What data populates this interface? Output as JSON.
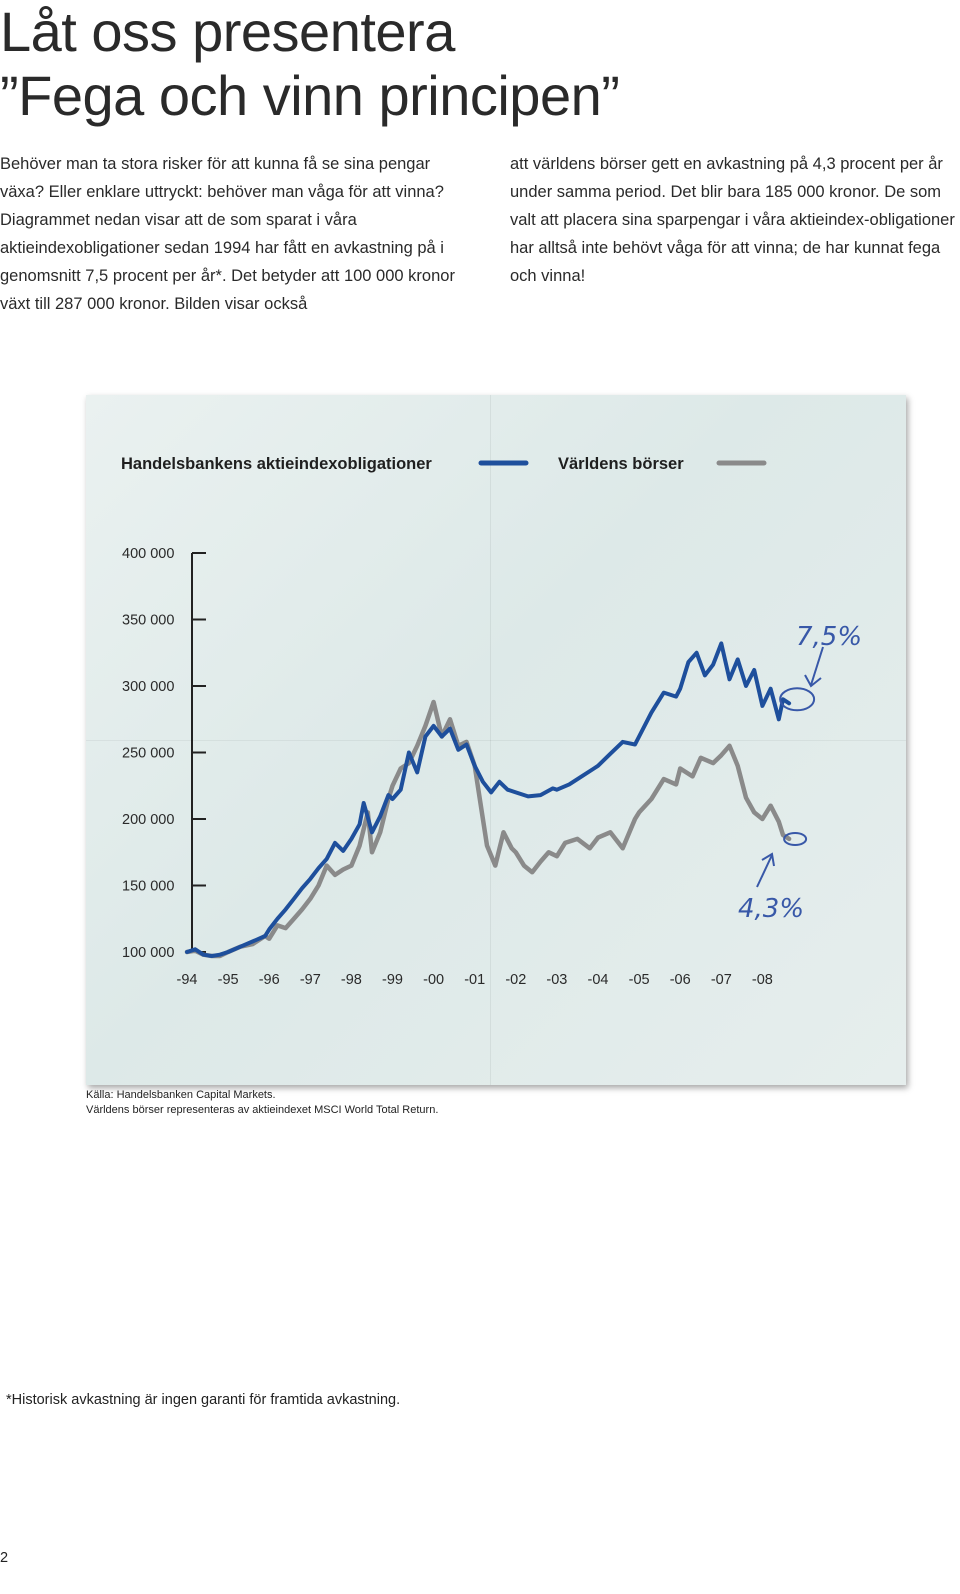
{
  "heading": {
    "line1": "Låt oss presentera",
    "line2": "”Fega och vinn principen”"
  },
  "body": {
    "left": "Behöver man ta stora risker för att kunna få se sina pengar växa? Eller enklare uttryckt: behöver man våga för att vinna? Diagrammet nedan visar att de som sparat i våra aktieindexobligationer sedan 1994 har fått en avkastning på i genomsnitt 7,5 procent per år*. Det betyder att 100 000 kronor växt till 287 000 kronor. Bilden visar också",
    "right": "att världens börser gett en avkastning på 4,3 procent per år under samma period. Det blir bara 185 000 kronor. De som valt att placera sina sparpengar i våra aktieindex-obligationer har alltså inte behövt våga för att vinna; de har kunnat fega och vinna!"
  },
  "chart_data": {
    "type": "line",
    "colors": {
      "handelsbanken": "#1e4f9c",
      "world": "#8a8a8a",
      "annotation": "#3858a8"
    },
    "legend_placement": "top",
    "grid": false,
    "ylim": [
      100000,
      400000
    ],
    "y_ticks": [
      "400 000",
      "350 000",
      "300 000",
      "250 000",
      "200 000",
      "150 000",
      "100 000"
    ],
    "y_tick_values": [
      400000,
      350000,
      300000,
      250000,
      200000,
      150000,
      100000
    ],
    "x_ticks": [
      "-94",
      "-95",
      "-96",
      "-97",
      "-98",
      "-99",
      "-00",
      "-01",
      "-02",
      "-03",
      "-04",
      "-05",
      "-06",
      "-07",
      "-08"
    ],
    "xlim": [
      1994,
      2008.9
    ],
    "series": [
      {
        "name": "Handelsbankens aktieindexobligationer",
        "points": [
          [
            1994.0,
            100000
          ],
          [
            1994.2,
            102000
          ],
          [
            1994.4,
            98000
          ],
          [
            1994.6,
            97000
          ],
          [
            1994.8,
            98000
          ],
          [
            1995.0,
            100000
          ],
          [
            1995.3,
            104000
          ],
          [
            1995.6,
            108000
          ],
          [
            1995.9,
            112000
          ],
          [
            1996.0,
            117000
          ],
          [
            1996.2,
            125000
          ],
          [
            1996.4,
            132000
          ],
          [
            1996.6,
            140000
          ],
          [
            1996.8,
            148000
          ],
          [
            1997.0,
            155000
          ],
          [
            1997.2,
            163000
          ],
          [
            1997.4,
            170000
          ],
          [
            1997.6,
            182000
          ],
          [
            1997.8,
            176000
          ],
          [
            1998.0,
            185000
          ],
          [
            1998.2,
            196000
          ],
          [
            1998.3,
            212000
          ],
          [
            1998.5,
            190000
          ],
          [
            1998.7,
            202000
          ],
          [
            1998.9,
            218000
          ],
          [
            1999.0,
            215000
          ],
          [
            1999.2,
            222000
          ],
          [
            1999.4,
            250000
          ],
          [
            1999.6,
            235000
          ],
          [
            1999.8,
            262000
          ],
          [
            2000.0,
            270000
          ],
          [
            2000.2,
            262000
          ],
          [
            2000.4,
            268000
          ],
          [
            2000.6,
            252000
          ],
          [
            2000.8,
            256000
          ],
          [
            2001.0,
            240000
          ],
          [
            2001.2,
            228000
          ],
          [
            2001.4,
            220000
          ],
          [
            2001.6,
            228000
          ],
          [
            2001.8,
            222000
          ],
          [
            2002.0,
            220000
          ],
          [
            2002.3,
            217000
          ],
          [
            2002.6,
            218000
          ],
          [
            2002.9,
            223000
          ],
          [
            2003.0,
            222000
          ],
          [
            2003.3,
            226000
          ],
          [
            2003.6,
            232000
          ],
          [
            2003.9,
            238000
          ],
          [
            2004.0,
            240000
          ],
          [
            2004.3,
            249000
          ],
          [
            2004.6,
            258000
          ],
          [
            2004.9,
            256000
          ],
          [
            2005.0,
            262000
          ],
          [
            2005.3,
            280000
          ],
          [
            2005.6,
            295000
          ],
          [
            2005.9,
            292000
          ],
          [
            2006.0,
            298000
          ],
          [
            2006.2,
            318000
          ],
          [
            2006.4,
            325000
          ],
          [
            2006.6,
            308000
          ],
          [
            2006.8,
            316000
          ],
          [
            2007.0,
            332000
          ],
          [
            2007.2,
            305000
          ],
          [
            2007.4,
            320000
          ],
          [
            2007.6,
            300000
          ],
          [
            2007.8,
            312000
          ],
          [
            2008.0,
            285000
          ],
          [
            2008.2,
            298000
          ],
          [
            2008.4,
            275000
          ],
          [
            2008.5,
            290000
          ],
          [
            2008.65,
            287000
          ]
        ]
      },
      {
        "name": "Världens börser",
        "points": [
          [
            1994.0,
            100000
          ],
          [
            1994.2,
            101000
          ],
          [
            1994.4,
            98000
          ],
          [
            1994.6,
            97000
          ],
          [
            1994.8,
            97000
          ],
          [
            1995.0,
            100000
          ],
          [
            1995.3,
            104000
          ],
          [
            1995.6,
            106000
          ],
          [
            1995.9,
            112000
          ],
          [
            1996.0,
            110000
          ],
          [
            1996.2,
            120000
          ],
          [
            1996.4,
            118000
          ],
          [
            1996.6,
            125000
          ],
          [
            1996.8,
            132000
          ],
          [
            1997.0,
            140000
          ],
          [
            1997.2,
            150000
          ],
          [
            1997.4,
            165000
          ],
          [
            1997.6,
            158000
          ],
          [
            1997.8,
            162000
          ],
          [
            1998.0,
            165000
          ],
          [
            1998.2,
            180000
          ],
          [
            1998.4,
            205000
          ],
          [
            1998.5,
            175000
          ],
          [
            1998.7,
            190000
          ],
          [
            1998.9,
            215000
          ],
          [
            1999.0,
            225000
          ],
          [
            1999.2,
            238000
          ],
          [
            1999.4,
            242000
          ],
          [
            1999.6,
            255000
          ],
          [
            1999.8,
            270000
          ],
          [
            2000.0,
            288000
          ],
          [
            2000.2,
            262000
          ],
          [
            2000.4,
            275000
          ],
          [
            2000.6,
            255000
          ],
          [
            2000.8,
            258000
          ],
          [
            2001.0,
            240000
          ],
          [
            2001.2,
            200000
          ],
          [
            2001.3,
            180000
          ],
          [
            2001.5,
            165000
          ],
          [
            2001.7,
            190000
          ],
          [
            2001.9,
            178000
          ],
          [
            2002.0,
            175000
          ],
          [
            2002.2,
            165000
          ],
          [
            2002.4,
            160000
          ],
          [
            2002.6,
            168000
          ],
          [
            2002.8,
            175000
          ],
          [
            2003.0,
            172000
          ],
          [
            2003.2,
            182000
          ],
          [
            2003.5,
            185000
          ],
          [
            2003.8,
            178000
          ],
          [
            2004.0,
            186000
          ],
          [
            2004.3,
            190000
          ],
          [
            2004.6,
            178000
          ],
          [
            2004.9,
            200000
          ],
          [
            2005.0,
            205000
          ],
          [
            2005.3,
            215000
          ],
          [
            2005.6,
            230000
          ],
          [
            2005.9,
            226000
          ],
          [
            2006.0,
            238000
          ],
          [
            2006.3,
            232000
          ],
          [
            2006.5,
            246000
          ],
          [
            2006.8,
            242000
          ],
          [
            2007.0,
            248000
          ],
          [
            2007.2,
            255000
          ],
          [
            2007.4,
            240000
          ],
          [
            2007.6,
            216000
          ],
          [
            2007.8,
            205000
          ],
          [
            2008.0,
            200000
          ],
          [
            2008.2,
            210000
          ],
          [
            2008.4,
            198000
          ],
          [
            2008.5,
            188000
          ],
          [
            2008.65,
            185000
          ]
        ]
      }
    ],
    "annotations": {
      "handelsbanken_return": "7,5%",
      "world_return": "4,3%"
    }
  },
  "source": {
    "line1": "Källa: Handelsbanken Capital Markets.",
    "line2": "Världens börser representeras av aktieindexet MSCI World Total Return."
  },
  "footnote": "*Historisk avkastning är ingen garanti för framtida avkastning.",
  "page_number": "2"
}
